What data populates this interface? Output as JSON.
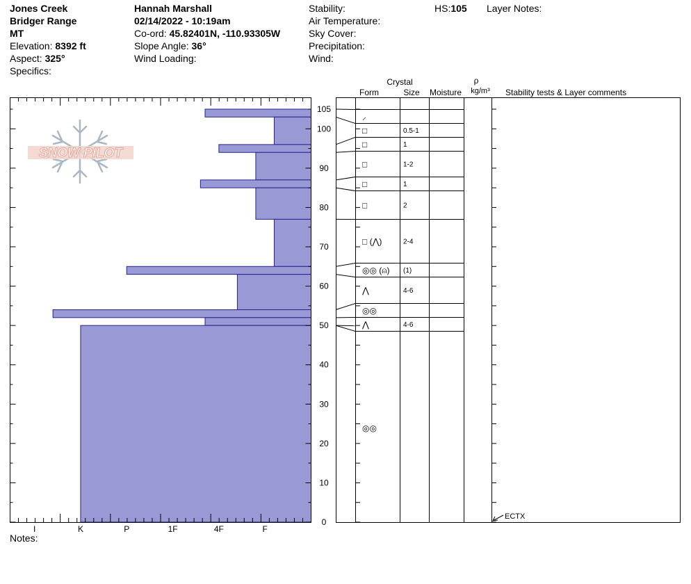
{
  "header": {
    "location": "Jones Creek",
    "range": "Bridger Range",
    "state": "MT",
    "elevation_label": "Elevation:",
    "elevation_value": "8392 ft",
    "aspect_label": "Aspect:",
    "aspect_value": "325°",
    "specifics_label": "Specifics:",
    "observer": "Hannah Marshall",
    "datetime": "02/14/2022 - 10:19am",
    "coord_label": "Co-ord:",
    "coord_value": "45.82401N, -110.93305W",
    "slope_label": "Slope Angle:",
    "slope_value": "36°",
    "wind_loading_label": "Wind Loading:",
    "stability_label": "Stability:",
    "air_temp_label": "Air Temperature:",
    "sky_cover_label": "Sky Cover:",
    "precip_label": "Precipitation:",
    "wind_label": "Wind:",
    "hs_label": "HS:",
    "hs_value": "105",
    "layer_notes_label": "Layer Notes:"
  },
  "notes_label": "Notes:",
  "logo_text": "SNOW PILOT",
  "colors": {
    "bar_fill": "#9999d6",
    "bar_stroke": "#22228a",
    "logo": "#e3a394"
  },
  "columns": {
    "crystal": "Crystal",
    "form": "Form",
    "size": "Size",
    "moisture": "Moisture",
    "rho": "ρ",
    "density_unit": "kg/m³",
    "comments": "Stability tests & Layer comments"
  },
  "chart_data": {
    "type": "bar",
    "orientation": "horizontal",
    "ylabel": "",
    "ylim": [
      0,
      105
    ],
    "yticks": [
      0,
      10,
      20,
      30,
      40,
      50,
      60,
      70,
      80,
      90,
      100,
      105
    ],
    "hardness_scale": [
      "I",
      "K",
      "P",
      "1F",
      "4F",
      "F"
    ],
    "hardness_index": {
      "F": 1,
      "4F": 2,
      "1F": 3,
      "P": 4,
      "K": 5,
      "I": 6
    },
    "layers": [
      {
        "bottom": 103,
        "top": 105,
        "hardness": 2.3
      },
      {
        "bottom": 96,
        "top": 103,
        "hardness": 0.8
      },
      {
        "bottom": 94,
        "top": 96,
        "hardness": 2.0
      },
      {
        "bottom": 87,
        "top": 94,
        "hardness": 1.2
      },
      {
        "bottom": 85,
        "top": 87,
        "hardness": 2.4
      },
      {
        "bottom": 77,
        "top": 85,
        "hardness": 1.2
      },
      {
        "bottom": 65,
        "top": 77,
        "hardness": 0.8
      },
      {
        "bottom": 63,
        "top": 65,
        "hardness": 4.0
      },
      {
        "bottom": 54,
        "top": 63,
        "hardness": 1.6
      },
      {
        "bottom": 52,
        "top": 54,
        "hardness": 5.6
      },
      {
        "bottom": 50,
        "top": 52,
        "hardness": 2.3
      },
      {
        "bottom": 0,
        "top": 50,
        "hardness": 5.0
      }
    ],
    "crystal_rows": [
      {
        "form": "⸝",
        "size": ""
      },
      {
        "form": "□",
        "size": "0.5-1"
      },
      {
        "form": "□",
        "size": "1"
      },
      {
        "form": "□",
        "size": "1-2"
      },
      {
        "form": "□",
        "size": "1"
      },
      {
        "form": "□",
        "size": "2"
      },
      {
        "form": "□ (⋀)",
        "size": "2-4"
      },
      {
        "form": "◎◎ (⍝)",
        "size": "(1)"
      },
      {
        "form": "⋀",
        "size": "4-6"
      },
      {
        "form": "◎◎",
        "size": ""
      },
      {
        "form": "⋀",
        "size": "4-6"
      },
      {
        "form": "◎◎",
        "size": ""
      }
    ],
    "tests": [
      {
        "label": "ECTX",
        "depth": 0
      }
    ]
  }
}
